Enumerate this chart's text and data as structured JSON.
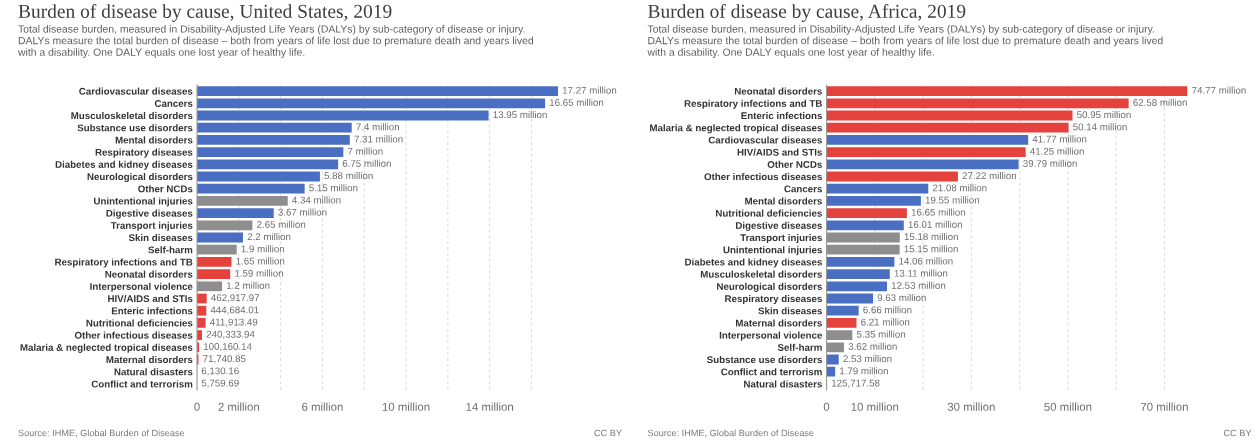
{
  "chart_data": [
    {
      "type": "bar",
      "orientation": "horizontal",
      "title": "Burden of disease by cause, United States, 2019",
      "subtitle": "Total disease burden, measured in Disability-Adjusted Life Years (DALYs) by sub-category of disease or injury.\nDALYs measure the total burden of disease – both from years of life lost due to premature death and years lived\nwith a disability. One DALY equals one lost year of healthy life.",
      "categories": [
        "Cardiovascular diseases",
        "Cancers",
        "Musculoskeletal disorders",
        "Substance use disorders",
        "Mental disorders",
        "Respiratory diseases",
        "Diabetes and kidney diseases",
        "Neurological disorders",
        "Other NCDs",
        "Unintentional injuries",
        "Digestive diseases",
        "Transport injuries",
        "Skin diseases",
        "Self-harm",
        "Respiratory infections and TB",
        "Neonatal disorders",
        "Interpersonal violence",
        "HIV/AIDS and STIs",
        "Enteric infections",
        "Nutritional deficiencies",
        "Other infectious diseases",
        "Malaria & neglected tropical diseases",
        "Maternal disorders",
        "Natural disasters",
        "Conflict and terrorism"
      ],
      "values": [
        17270000,
        16650000,
        13950000,
        7400000,
        7310000,
        7000000,
        6750000,
        5880000,
        5150000,
        4340000,
        3670000,
        2650000,
        2200000,
        1900000,
        1650000,
        1590000,
        1200000,
        462917.97,
        444684.01,
        411913.49,
        240333.94,
        100160.14,
        71740.85,
        6130.16,
        5759.69
      ],
      "colors": [
        "#4a6fc2",
        "#4a6fc2",
        "#4a6fc2",
        "#4a6fc2",
        "#4a6fc2",
        "#4a6fc2",
        "#4a6fc2",
        "#4a6fc2",
        "#4a6fc2",
        "#8e8e8e",
        "#4a6fc2",
        "#8e8e8e",
        "#4a6fc2",
        "#8e8e8e",
        "#e5413d",
        "#e5413d",
        "#8e8e8e",
        "#e5413d",
        "#e5413d",
        "#e5413d",
        "#e5413d",
        "#e5413d",
        "#e5413d",
        "#8e8e8e",
        "#8e8e8e"
      ],
      "value_labels": [
        "17.27 million",
        "16.65 million",
        "13.95 million",
        "7.4 million",
        "7.31 million",
        "7 million",
        "6.75 million",
        "5.88 million",
        "5.15 million",
        "4.34 million",
        "3.67 million",
        "2.65 million",
        "2.2 million",
        "1.9 million",
        "1.65 million",
        "1.59 million",
        "1.2 million",
        "462,917.97",
        "444,684.01",
        "411,913.49",
        "240,333.94",
        "100,160.14",
        "71,740.85",
        "6,130.16",
        "5,759.69"
      ],
      "xlim": [
        0,
        17270000
      ],
      "xticks": [
        0,
        {
          "value": 2000000,
          "label": "2 million"
        },
        {
          "value": 4000000,
          "label": null
        },
        {
          "value": 6000000,
          "label": "6 million"
        },
        {
          "value": 8000000,
          "label": null
        },
        {
          "value": 10000000,
          "label": "10 million"
        },
        {
          "value": 12000000,
          "label": null
        },
        {
          "value": 14000000,
          "label": "14 million"
        },
        {
          "value": 16000000,
          "label": null
        }
      ],
      "grid": "x",
      "annotations": [
        "Source: IHME, Global Burden of Disease",
        "CC BY"
      ]
    },
    {
      "type": "bar",
      "orientation": "horizontal",
      "title": "Burden of disease by cause, Africa, 2019",
      "subtitle": "Total disease burden, measured in Disability-Adjusted Life Years (DALYs) by sub-category of disease or injury.\nDALYs measure the total burden of disease – both from years of life lost due to premature death and years lived\nwith a disability. One DALY equals one lost year of healthy life.",
      "categories": [
        "Neonatal disorders",
        "Respiratory infections and TB",
        "Enteric infections",
        "Malaria & neglected tropical diseases",
        "Cardiovascular diseases",
        "HIV/AIDS and STIs",
        "Other NCDs",
        "Other infectious diseases",
        "Cancers",
        "Mental disorders",
        "Nutritional deficiencies",
        "Digestive diseases",
        "Transport injuries",
        "Unintentional injuries",
        "Diabetes and kidney diseases",
        "Musculoskeletal disorders",
        "Neurological disorders",
        "Respiratory diseases",
        "Skin diseases",
        "Maternal disorders",
        "Interpersonal violence",
        "Self-harm",
        "Substance use disorders",
        "Conflict and terrorism",
        "Natural disasters"
      ],
      "values": [
        74770000,
        62580000,
        50950000,
        50140000,
        41770000,
        41250000,
        39790000,
        27220000,
        21080000,
        19550000,
        16650000,
        16010000,
        15180000,
        15150000,
        14060000,
        13110000,
        12530000,
        9630000,
        6660000,
        6210000,
        5350000,
        3620000,
        2530000,
        1790000,
        125717.58
      ],
      "colors": [
        "#e5413d",
        "#e5413d",
        "#e5413d",
        "#e5413d",
        "#4a6fc2",
        "#e5413d",
        "#4a6fc2",
        "#e5413d",
        "#4a6fc2",
        "#4a6fc2",
        "#e5413d",
        "#4a6fc2",
        "#8e8e8e",
        "#8e8e8e",
        "#4a6fc2",
        "#4a6fc2",
        "#4a6fc2",
        "#4a6fc2",
        "#4a6fc2",
        "#e5413d",
        "#8e8e8e",
        "#8e8e8e",
        "#4a6fc2",
        "#4a6fc2",
        "#8e8e8e"
      ],
      "value_labels": [
        "74.77 million",
        "62.58 million",
        "50.95 million",
        "50.14 million",
        "41.77 million",
        "41.25 million",
        "39.79 million",
        "27.22 million",
        "21.08 million",
        "19.55 million",
        "16.65 million",
        "16.01 million",
        "15.18 million",
        "15.15 million",
        "14.06 million",
        "13.11 million",
        "12.53 million",
        "9.63 million",
        "6.66 million",
        "6.21 million",
        "5.35 million",
        "3.62 million",
        "2.53 million",
        "1.79 million",
        "125,717.58"
      ],
      "xlim": [
        0,
        74770000
      ],
      "xticks": [
        0,
        {
          "value": 10000000,
          "label": "10 million"
        },
        {
          "value": 20000000,
          "label": null
        },
        {
          "value": 30000000,
          "label": "30 million"
        },
        {
          "value": 40000000,
          "label": null
        },
        {
          "value": 50000000,
          "label": "50 million"
        },
        {
          "value": 60000000,
          "label": null
        },
        {
          "value": 70000000,
          "label": "70 million"
        }
      ],
      "grid": "x",
      "annotations": [
        "Source: IHME, Global Burden of Disease",
        "CC BY"
      ]
    }
  ]
}
